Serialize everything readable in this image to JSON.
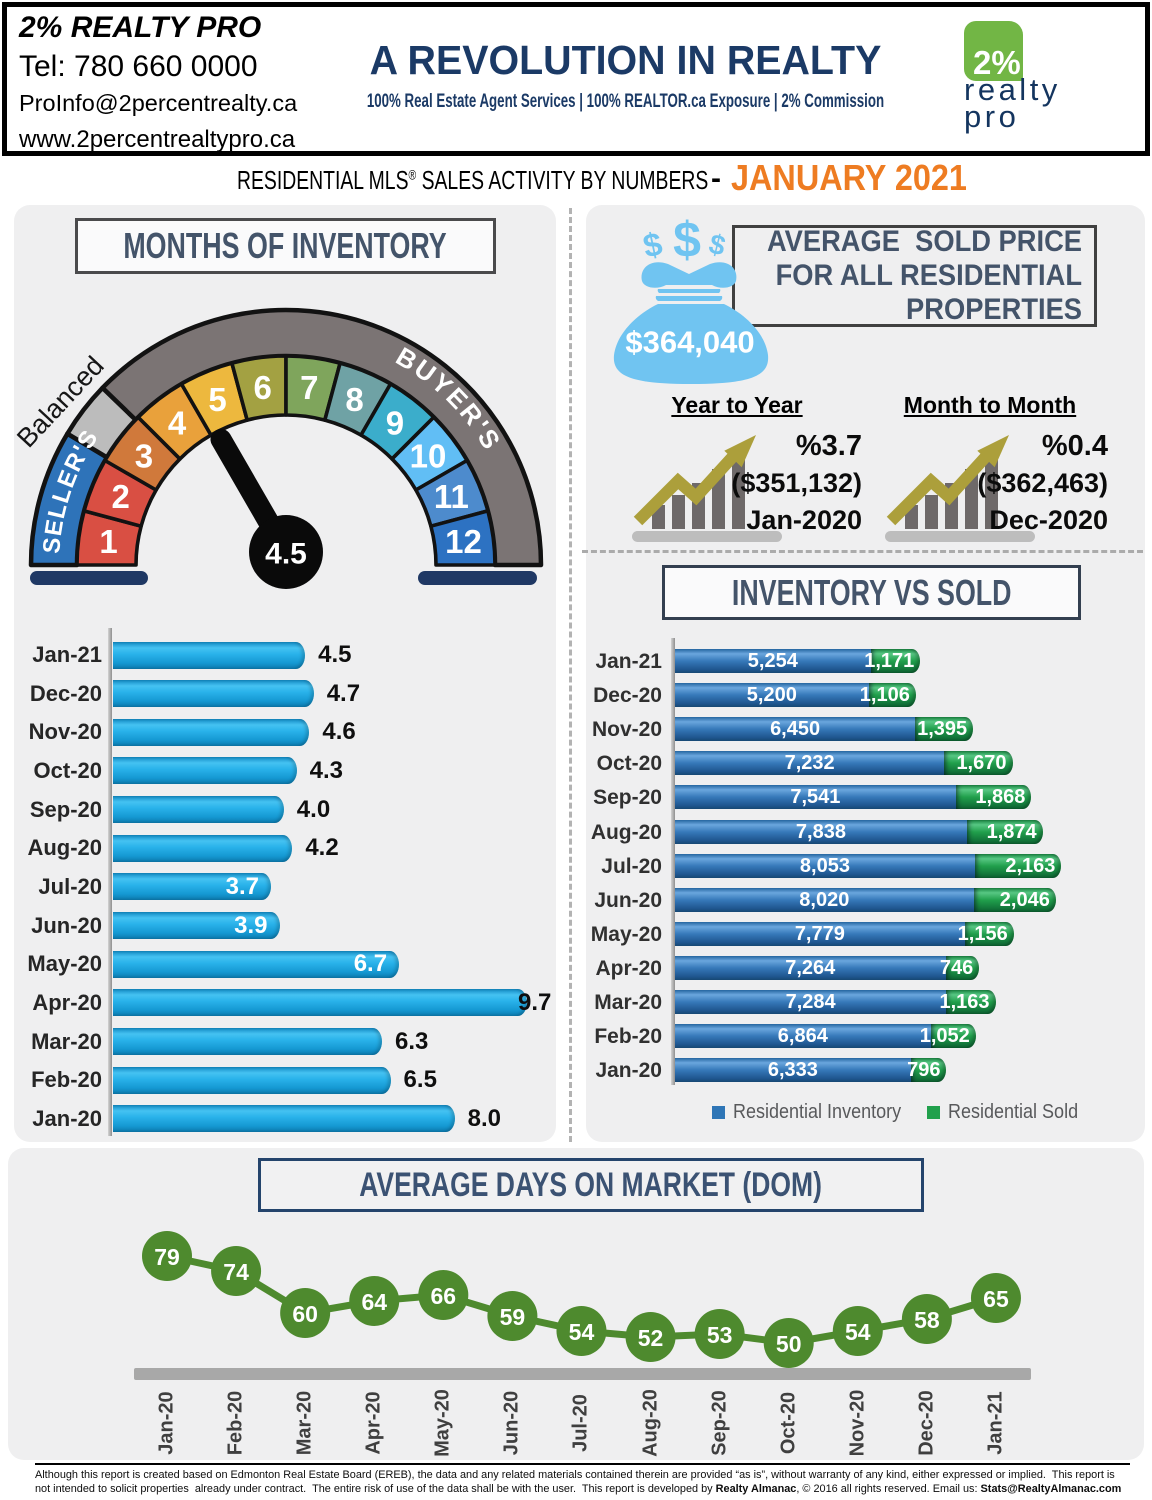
{
  "header": {
    "company": "2% REALTY PRO",
    "phone": "Tel: 780 660 0000",
    "email": "ProInfo@2percentrealty.ca",
    "website": "www.2percentrealtypro.ca",
    "tagline": "A REVOLUTION IN REALTY",
    "subtitle": "100% Real Estate Agent Services | 100% REALTOR.ca Exposure | 2% Commission",
    "logo": {
      "percent": "2%",
      "word1": "realty",
      "word2": "pro"
    }
  },
  "title_bar": {
    "main": "RESIDENTIAL MLS",
    "registered": "®",
    "main2": " SALES ACTIVITY BY NUMBERS",
    "dash": "-",
    "period": "JANUARY 2021"
  },
  "colors": {
    "accent_orange": "#EE7C22",
    "brand_navy": "#1B3A66",
    "logo_green": "#72B645",
    "panel_gray": "#EFEFF0",
    "title_slate": "#44546A",
    "money_bag_blue": "#70C4F1",
    "growth_arrow_gold": "#AC9F3B"
  },
  "sold_price": {
    "title_line1": "AVERAGE  SOLD PRICE",
    "title_line2": "FOR ALL RESIDENTIAL",
    "title_line3": "PROPERTIES",
    "amount": "$364,040",
    "year_to_year": {
      "label": "Year to Year",
      "percent": "%3.7",
      "amount": "($351,132)",
      "period": "Jan-2020"
    },
    "month_to_month": {
      "label": "Month to Month",
      "percent": "%0.4",
      "amount": "($362,463)",
      "period": "Dec-2020"
    }
  },
  "chart_data": [
    {
      "id": "months_of_inventory_gauge",
      "type": "gauge",
      "title": "MONTHS OF INVENTORY",
      "value": 4.5,
      "min": 0,
      "max": 12,
      "segment_labels": [
        "1",
        "2",
        "3",
        "4",
        "5",
        "6",
        "7",
        "8",
        "9",
        "10",
        "11",
        "12"
      ],
      "segment_colors": [
        "#D94F43",
        "#D94F43",
        "#D0793B",
        "#E9A13B",
        "#EDB83E",
        "#A3A142",
        "#7FA55C",
        "#6FA2A5",
        "#3BADCB",
        "#61BEF5",
        "#4D8BCD",
        "#2D72C2"
      ],
      "zones": [
        {
          "label": "SELLER'S",
          "color": "#2E73B9",
          "from_deg": 180,
          "to_deg": 149
        },
        {
          "label": "Balanced",
          "color": "#BCBCBC",
          "from_deg": 149,
          "to_deg": 136
        },
        {
          "label": "BUYER'S",
          "color": "#7B7474",
          "from_deg": 136,
          "to_deg": 0
        }
      ]
    },
    {
      "id": "months_of_inventory_bars",
      "type": "bar",
      "orientation": "horizontal",
      "categories": [
        "Jan-21",
        "Dec-20",
        "Nov-20",
        "Oct-20",
        "Sep-20",
        "Aug-20",
        "Jul-20",
        "Jun-20",
        "May-20",
        "Apr-20",
        "Mar-20",
        "Feb-20",
        "Jan-20"
      ],
      "values": [
        4.5,
        4.7,
        4.6,
        4.3,
        4.0,
        4.2,
        3.7,
        3.9,
        6.7,
        9.7,
        6.3,
        6.5,
        8.0
      ],
      "label_inside": [
        false,
        false,
        false,
        false,
        false,
        false,
        true,
        true,
        true,
        false,
        false,
        false,
        false
      ],
      "bar_color": "#1FA8E0",
      "xlim": [
        0,
        10.4
      ]
    },
    {
      "id": "inventory_vs_sold",
      "type": "stacked_bar",
      "orientation": "horizontal",
      "title": "INVENTORY VS SOLD",
      "categories": [
        "Jan-21",
        "Dec-20",
        "Nov-20",
        "Oct-20",
        "Sep-20",
        "Aug-20",
        "Jul-20",
        "Jun-20",
        "May-20",
        "Apr-20",
        "Mar-20",
        "Feb-20",
        "Jan-20"
      ],
      "series": [
        {
          "name": "Residential Inventory",
          "color": "#2E75B6",
          "values": [
            5254,
            5200,
            6450,
            7232,
            7541,
            7838,
            8053,
            8020,
            7779,
            7264,
            7284,
            6864,
            6333
          ]
        },
        {
          "name": "Residential Sold",
          "color": "#21A04C",
          "values": [
            1171,
            1106,
            1395,
            1670,
            1868,
            1874,
            2163,
            2046,
            1156,
            746,
            1163,
            1052,
            796
          ]
        }
      ],
      "legend_position": "bottom"
    },
    {
      "id": "average_days_on_market",
      "type": "line",
      "title": "AVERAGE DAYS ON MARKET (DOM)",
      "categories": [
        "Jan-20",
        "Feb-20",
        "Mar-20",
        "Apr-20",
        "May-20",
        "Jun-20",
        "Jul-20",
        "Aug-20",
        "Sep-20",
        "Oct-20",
        "Nov-20",
        "Dec-20",
        "Jan-21"
      ],
      "values": [
        79,
        74,
        60,
        64,
        66,
        59,
        54,
        52,
        53,
        50,
        54,
        58,
        65
      ],
      "marker_color": "#4E8A2E",
      "ylim": [
        45,
        85
      ]
    }
  ],
  "footer": {
    "line1": "Although this report is created based on Edmonton Real Estate Board (EREB), the data and any related materials contained therein are provided “as is”, without warranty of any kind, either expressed or implied.  This report is",
    "line2_pre": "not intended to solicit properties  already under contract.  The entire risk of use of the data shall be with the user.  This report is developed by ",
    "line2_bold1": "Realty Almanac",
    "line2_mid": ", © 2016 all rights reserved. Email us: ",
    "line2_bold2": "Stats@RealtyAlmanac.com"
  }
}
